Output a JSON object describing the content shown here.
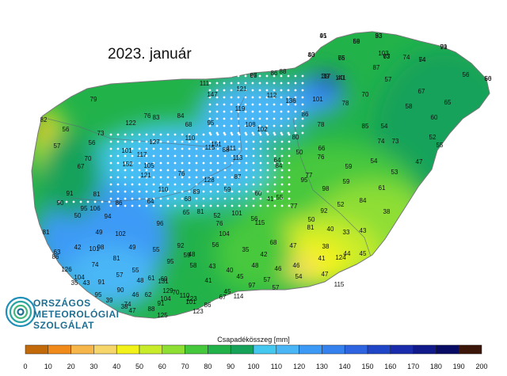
{
  "title": "2023. január",
  "logo": {
    "line1": "ORSZÁGOS",
    "line2": "METEOROLÓGIAI",
    "line3": "SZOLGÁLAT"
  },
  "legend": {
    "title": "Csapadékösszeg [mm]",
    "ticks": [
      "0",
      "10",
      "20",
      "30",
      "40",
      "50",
      "60",
      "70",
      "80",
      "90",
      "100",
      "110",
      "120",
      "130",
      "140",
      "150",
      "160",
      "170",
      "180",
      "190",
      "200"
    ],
    "colors": [
      "#c26a0a",
      "#f08a1a",
      "#f7b64a",
      "#f6d66a",
      "#f2f21a",
      "#c8ec2a",
      "#8ede34",
      "#46c83c",
      "#22b24a",
      "#17a25a",
      "#44c8f0",
      "#4ab6f6",
      "#3c9af6",
      "#3582ee",
      "#2e64e0",
      "#1f46c6",
      "#1a2cac",
      "#111a8a",
      "#090c64",
      "#3c1608"
    ]
  },
  "stations": [
    "95",
    "69",
    "93",
    "79",
    "83",
    "76",
    "73",
    "54",
    "56",
    "97",
    "117",
    "141",
    "88",
    "103",
    "74",
    "86",
    "87",
    "57",
    "67",
    "56",
    "111",
    "147",
    "121",
    "136",
    "101",
    "78",
    "112",
    "79",
    "58",
    "122",
    "73",
    "83",
    "119",
    "108",
    "102",
    "86",
    "70",
    "65",
    "60",
    "82",
    "56",
    "68",
    "76",
    "84",
    "95",
    "110",
    "151",
    "111",
    "56",
    "70",
    "80",
    "66",
    "52",
    "54",
    "74",
    "78",
    "85",
    "127",
    "101",
    "117",
    "115",
    "88",
    "47",
    "55",
    "73",
    "57",
    "67",
    "64",
    "152",
    "105",
    "113",
    "84",
    "87",
    "59",
    "54",
    "53",
    "50",
    "76",
    "77",
    "59",
    "121",
    "76",
    "128",
    "110",
    "91",
    "89",
    "81",
    "59",
    "60",
    "55",
    "95",
    "86",
    "94",
    "64",
    "68",
    "81",
    "52",
    "95",
    "98",
    "61",
    "56",
    "41",
    "52",
    "84",
    "38",
    "81",
    "50",
    "92",
    "90",
    "106",
    "96",
    "65",
    "101",
    "115",
    "102",
    "49",
    "49",
    "55",
    "92",
    "76",
    "77",
    "50",
    "40",
    "33",
    "43",
    "104",
    "68",
    "47",
    "81",
    "74",
    "48",
    "43",
    "35",
    "41",
    "44",
    "45",
    "38",
    "46",
    "48",
    "56",
    "45",
    "45",
    "46",
    "42",
    "101",
    "81",
    "86",
    "57",
    "61",
    "69",
    "58",
    "41",
    "40",
    "42",
    "47",
    "124",
    "115",
    "129",
    "126",
    "91",
    "104",
    "63",
    "55",
    "62",
    "110",
    "123",
    "123",
    "131",
    "104",
    "88",
    "90",
    "74",
    "39",
    "38",
    "48",
    "95",
    "59",
    "98",
    "91",
    "95",
    "70",
    "46",
    "43",
    "35",
    "47",
    "125",
    "101",
    "86",
    "67",
    "114",
    "97",
    "57",
    "57",
    "54",
    "41",
    "56",
    "33",
    "91",
    "40",
    "65",
    "67",
    "74",
    "60",
    "66",
    "39",
    "40"
  ]
}
